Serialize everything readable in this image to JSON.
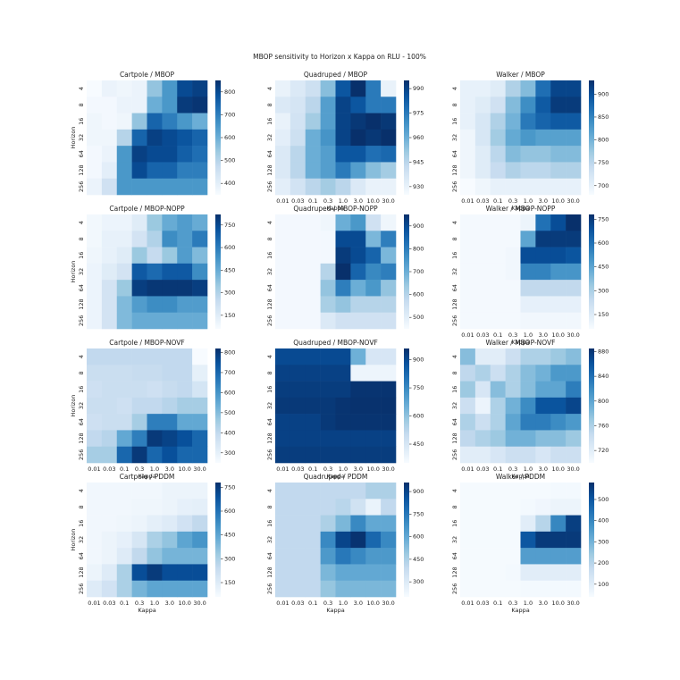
{
  "title": "MBOP sensitivity to Horizon x Kappa on RLU - 100%",
  "chart_data": [
    {
      "type": "heatmap",
      "title": "Cartpole / MBOP",
      "ylabel": "Horizon",
      "y": [
        "4",
        "8",
        "16",
        "32",
        "64",
        "128",
        "256"
      ],
      "cmap": "Blues",
      "clim": [
        350,
        850
      ],
      "cticks": [
        400,
        500,
        600,
        700,
        800
      ],
      "values": [
        [
          350,
          380,
          370,
          380,
          550,
          650,
          800,
          820
        ],
        [
          360,
          360,
          380,
          380,
          600,
          650,
          830,
          840
        ],
        [
          370,
          360,
          370,
          550,
          750,
          700,
          650,
          600
        ],
        [
          370,
          370,
          500,
          750,
          820,
          800,
          780,
          750
        ],
        [
          360,
          380,
          650,
          820,
          800,
          800,
          760,
          730
        ],
        [
          360,
          400,
          650,
          800,
          750,
          750,
          700,
          700
        ],
        [
          380,
          450,
          650,
          650,
          650,
          650,
          650,
          650
        ]
      ]
    },
    {
      "type": "heatmap",
      "title": "Quadruped / MBOP",
      "xlabel": "Kappa",
      "x": [
        "0.01",
        "0.03",
        "0.1",
        "0.3",
        "1.0",
        "3.0",
        "10.0",
        "30.0"
      ],
      "y": [
        "4",
        "8",
        "16",
        "32",
        "64",
        "128",
        "256"
      ],
      "cmap": "Blues",
      "clim": [
        925,
        995
      ],
      "cticks": [
        930,
        945,
        960,
        975,
        990
      ],
      "values": [
        [
          930,
          935,
          940,
          955,
          985,
          995,
          975,
          930
        ],
        [
          935,
          937,
          945,
          965,
          990,
          985,
          975,
          975
        ],
        [
          930,
          938,
          950,
          965,
          990,
          993,
          995,
          993
        ],
        [
          932,
          940,
          960,
          968,
          990,
          995,
          993,
          995
        ],
        [
          935,
          945,
          960,
          965,
          985,
          985,
          978,
          980
        ],
        [
          935,
          945,
          960,
          965,
          975,
          965,
          955,
          950
        ],
        [
          932,
          938,
          945,
          950,
          945,
          935,
          930,
          930
        ]
      ]
    },
    {
      "type": "heatmap",
      "title": "Walker / MBOP",
      "xlabel": "Kappa",
      "x": [
        "0.01",
        "0.03",
        "0.1",
        "0.3",
        "1.0",
        "3.0",
        "10.0",
        "30.0"
      ],
      "y": [
        "4",
        "8",
        "16",
        "32",
        "64",
        "128",
        "256"
      ],
      "cmap": "Blues",
      "clim": [
        680,
        930
      ],
      "cticks": [
        700,
        750,
        800,
        850,
        900
      ],
      "values": [
        [
          700,
          700,
          710,
          760,
          790,
          870,
          910,
          910
        ],
        [
          700,
          710,
          730,
          790,
          840,
          890,
          920,
          920
        ],
        [
          700,
          720,
          760,
          800,
          860,
          880,
          890,
          890
        ],
        [
          690,
          720,
          770,
          810,
          830,
          820,
          820,
          820
        ],
        [
          690,
          710,
          750,
          790,
          780,
          780,
          790,
          790
        ],
        [
          690,
          710,
          740,
          760,
          750,
          750,
          760,
          760
        ],
        [
          680,
          690,
          700,
          700,
          700,
          700,
          700,
          700
        ]
      ]
    },
    {
      "type": "heatmap",
      "title": "Cartpole / MBOP-NOPP",
      "ylabel": "Horizon",
      "y": [
        "4",
        "8",
        "16",
        "32",
        "64",
        "128",
        "256"
      ],
      "cmap": "Blues",
      "clim": [
        60,
        820
      ],
      "cticks": [
        150,
        300,
        450,
        600,
        750
      ],
      "values": [
        [
          80,
          100,
          100,
          150,
          350,
          450,
          500,
          450
        ],
        [
          80,
          120,
          120,
          200,
          300,
          550,
          500,
          600
        ],
        [
          90,
          120,
          150,
          350,
          250,
          350,
          500,
          400
        ],
        [
          100,
          150,
          200,
          700,
          650,
          700,
          700,
          550
        ],
        [
          100,
          200,
          350,
          780,
          800,
          800,
          800,
          780
        ],
        [
          100,
          200,
          400,
          500,
          550,
          550,
          500,
          500
        ],
        [
          100,
          200,
          400,
          450,
          450,
          450,
          450,
          450
        ]
      ]
    },
    {
      "type": "heatmap",
      "title": "Quadruped / MBOP-NOPP",
      "y": [
        "4",
        "8",
        "16",
        "32",
        "64",
        "128",
        "256"
      ],
      "cmap": "Blues",
      "clim": [
        450,
        950
      ],
      "cticks": [
        500,
        600,
        700,
        800,
        900
      ],
      "values": [
        [
          460,
          460,
          460,
          470,
          700,
          750,
          550,
          470
        ],
        [
          460,
          460,
          460,
          460,
          900,
          900,
          680,
          800
        ],
        [
          460,
          460,
          460,
          460,
          930,
          900,
          850,
          680
        ],
        [
          460,
          460,
          460,
          600,
          950,
          850,
          780,
          800
        ],
        [
          460,
          460,
          460,
          650,
          800,
          700,
          750,
          650
        ],
        [
          460,
          460,
          460,
          620,
          650,
          600,
          600,
          600
        ],
        [
          460,
          460,
          460,
          520,
          550,
          550,
          550,
          550
        ]
      ]
    },
    {
      "type": "heatmap",
      "title": "Walker / MBOP-NOPP",
      "xlabel": "Kappa",
      "x": [
        "0.01",
        "0.03",
        "0.1",
        "0.3",
        "1.0",
        "3.0",
        "10.0",
        "30.0"
      ],
      "y": [
        "4",
        "8",
        "16",
        "32",
        "64",
        "128",
        "256"
      ],
      "cmap": "Blues",
      "clim": [
        60,
        780
      ],
      "cticks": [
        150,
        300,
        450,
        600,
        750
      ],
      "values": [
        [
          70,
          70,
          70,
          70,
          100,
          600,
          700,
          780
        ],
        [
          70,
          70,
          70,
          70,
          450,
          750,
          750,
          750
        ],
        [
          70,
          70,
          70,
          80,
          700,
          700,
          700,
          680
        ],
        [
          70,
          70,
          70,
          80,
          550,
          550,
          500,
          500
        ],
        [
          70,
          70,
          70,
          70,
          250,
          250,
          250,
          250
        ],
        [
          70,
          70,
          70,
          70,
          120,
          120,
          120,
          120
        ],
        [
          70,
          70,
          70,
          70,
          80,
          80,
          80,
          80
        ]
      ]
    },
    {
      "type": "heatmap",
      "title": "Cartpole / MBOP-NOVF",
      "xlabel": "Kappa",
      "ylabel": "Horizon",
      "x": [
        "0.01",
        "0.03",
        "0.1",
        "0.3",
        "1.0",
        "3.0",
        "10.0",
        "30.0"
      ],
      "y": [
        "4",
        "8",
        "16",
        "32",
        "64",
        "128",
        "256"
      ],
      "cmap": "Blues",
      "clim": [
        250,
        820
      ],
      "cticks": [
        300,
        400,
        500,
        600,
        700,
        800
      ],
      "values": [
        [
          400,
          400,
          400,
          400,
          400,
          400,
          400,
          250
        ],
        [
          380,
          380,
          380,
          390,
          390,
          400,
          400,
          300
        ],
        [
          370,
          380,
          380,
          380,
          370,
          390,
          400,
          350
        ],
        [
          380,
          380,
          370,
          400,
          400,
          420,
          450,
          450
        ],
        [
          370,
          380,
          380,
          450,
          650,
          650,
          550,
          550
        ],
        [
          400,
          420,
          550,
          650,
          800,
          780,
          750,
          700
        ],
        [
          450,
          450,
          700,
          800,
          700,
          750,
          700,
          700
        ]
      ]
    },
    {
      "type": "heatmap",
      "title": "Quadruped / MBOP-NOVF",
      "xlabel": "Kappa",
      "x": [
        "0.01",
        "0.03",
        "0.1",
        "0.3",
        "1.0",
        "3.0",
        "10.0",
        "30.0"
      ],
      "y": [
        "4",
        "8",
        "16",
        "32",
        "64",
        "128",
        "256"
      ],
      "cmap": "Blues",
      "clim": [
        350,
        960
      ],
      "cticks": [
        450,
        600,
        750,
        900
      ],
      "values": [
        [
          900,
          900,
          900,
          900,
          900,
          650,
          450,
          450
        ],
        [
          920,
          920,
          920,
          920,
          920,
          380,
          380,
          380
        ],
        [
          930,
          930,
          930,
          930,
          930,
          950,
          950,
          950
        ],
        [
          940,
          940,
          940,
          940,
          950,
          955,
          955,
          955
        ],
        [
          920,
          920,
          920,
          940,
          950,
          950,
          950,
          950
        ],
        [
          920,
          920,
          920,
          920,
          920,
          920,
          920,
          920
        ],
        [
          930,
          930,
          930,
          930,
          930,
          930,
          930,
          930
        ]
      ]
    },
    {
      "type": "heatmap",
      "title": "Walker / MBOP-NOVF",
      "xlabel": "Kappa",
      "x": [
        "0.01",
        "0.03",
        "0.1",
        "0.3",
        "1.0",
        "3.0",
        "10.0",
        "30.0"
      ],
      "y": [
        "4",
        "8",
        "16",
        "32",
        "64",
        "128",
        "256"
      ],
      "cmap": "Blues",
      "clim": [
        700,
        885
      ],
      "cticks": [
        720,
        760,
        800,
        840,
        880
      ],
      "values": [
        [
          780,
          720,
          720,
          740,
          760,
          760,
          770,
          780
        ],
        [
          750,
          760,
          740,
          760,
          780,
          790,
          810,
          810
        ],
        [
          770,
          730,
          780,
          760,
          780,
          800,
          800,
          830
        ],
        [
          740,
          710,
          760,
          790,
          820,
          860,
          860,
          870
        ],
        [
          760,
          740,
          760,
          800,
          830,
          830,
          820,
          810
        ],
        [
          750,
          760,
          770,
          790,
          790,
          780,
          780,
          770
        ],
        [
          720,
          720,
          730,
          740,
          740,
          730,
          740,
          740
        ]
      ]
    },
    {
      "type": "heatmap",
      "title": "Cartpole / PDDM",
      "xlabel": "Kappa",
      "ylabel": "Horizon",
      "x": [
        "0.01",
        "0.03",
        "0.1",
        "0.3",
        "1.0",
        "3.0",
        "10.0",
        "30.0"
      ],
      "y": [
        "4",
        "8",
        "16",
        "32",
        "64",
        "128",
        "256"
      ],
      "cmap": "Blues",
      "clim": [
        60,
        780
      ],
      "cticks": [
        150,
        300,
        450,
        600,
        750
      ],
      "values": [
        [
          80,
          80,
          80,
          80,
          80,
          100,
          100,
          100
        ],
        [
          80,
          80,
          80,
          90,
          90,
          100,
          120,
          130
        ],
        [
          80,
          80,
          90,
          100,
          130,
          150,
          200,
          250
        ],
        [
          80,
          100,
          120,
          180,
          300,
          350,
          450,
          500
        ],
        [
          80,
          100,
          150,
          250,
          350,
          400,
          400,
          400
        ],
        [
          100,
          150,
          300,
          700,
          750,
          700,
          700,
          700
        ],
        [
          150,
          200,
          300,
          400,
          450,
          450,
          450,
          450
        ]
      ]
    },
    {
      "type": "heatmap",
      "title": "Quadruped / PDDM",
      "xlabel": "Kappa",
      "x": [
        "0.01",
        "0.03",
        "0.1",
        "0.3",
        "1.0",
        "3.0",
        "10.0",
        "30.0"
      ],
      "y": [
        "4",
        "8",
        "16",
        "32",
        "64",
        "128",
        "256"
      ],
      "cmap": "Blues",
      "clim": [
        200,
        960
      ],
      "cticks": [
        300,
        450,
        600,
        750,
        900
      ],
      "values": [
        [
          400,
          400,
          400,
          400,
          400,
          400,
          450,
          450
        ],
        [
          400,
          400,
          400,
          400,
          420,
          350,
          250,
          400
        ],
        [
          400,
          400,
          400,
          450,
          550,
          700,
          600,
          600
        ],
        [
          400,
          400,
          400,
          700,
          900,
          950,
          800,
          700
        ],
        [
          400,
          400,
          400,
          650,
          750,
          700,
          650,
          650
        ],
        [
          400,
          400,
          400,
          550,
          600,
          600,
          600,
          600
        ],
        [
          400,
          400,
          400,
          500,
          550,
          550,
          550,
          550
        ]
      ]
    },
    {
      "type": "heatmap",
      "title": "Walker / PDDM",
      "xlabel": "Kappa",
      "x": [
        "0.01",
        "0.03",
        "0.1",
        "0.3",
        "1.0",
        "3.0",
        "10.0",
        "30.0"
      ],
      "y": [
        "4",
        "8",
        "16",
        "32",
        "64",
        "128",
        "256"
      ],
      "cmap": "Blues",
      "clim": [
        40,
        580
      ],
      "cticks": [
        100,
        200,
        300,
        400,
        500
      ],
      "values": [
        [
          45,
          45,
          45,
          45,
          45,
          45,
          50,
          50
        ],
        [
          45,
          45,
          45,
          45,
          50,
          60,
          70,
          70
        ],
        [
          45,
          45,
          45,
          45,
          100,
          200,
          400,
          550
        ],
        [
          45,
          45,
          45,
          45,
          500,
          560,
          560,
          560
        ],
        [
          45,
          45,
          45,
          45,
          350,
          350,
          350,
          350
        ],
        [
          45,
          45,
          45,
          50,
          100,
          100,
          100,
          100
        ],
        [
          45,
          45,
          45,
          45,
          50,
          50,
          50,
          50
        ]
      ]
    }
  ]
}
